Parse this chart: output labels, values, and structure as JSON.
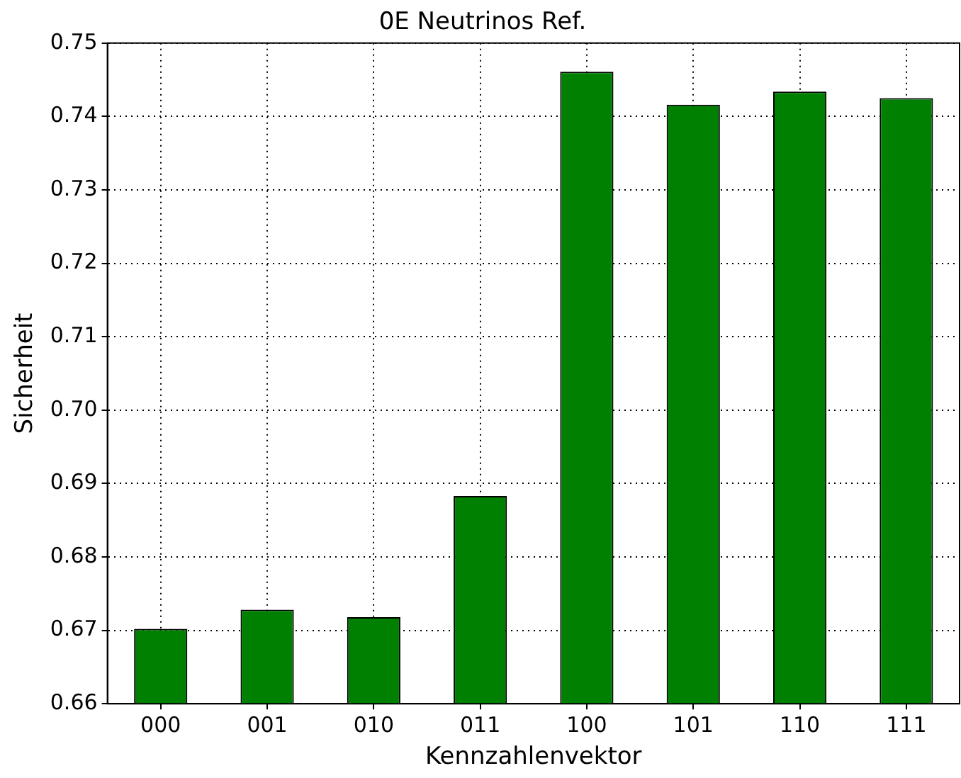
{
  "chart_data": {
    "type": "bar",
    "title": "0E Neutrinos Ref.",
    "xlabel": "Kennzahlenvektor",
    "ylabel": "Sicherheit",
    "categories": [
      "000",
      "001",
      "010",
      "011",
      "100",
      "101",
      "110",
      "111"
    ],
    "values": [
      0.6702,
      0.6728,
      0.6718,
      0.6883,
      0.7461,
      0.7416,
      0.7434,
      0.7425
    ],
    "color": "#008000",
    "ylim": [
      0.66,
      0.75
    ],
    "yticks": [
      {
        "value": 0.66,
        "label": "0.66"
      },
      {
        "value": 0.67,
        "label": "0.67"
      },
      {
        "value": 0.68,
        "label": "0.68"
      },
      {
        "value": 0.69,
        "label": "0.69"
      },
      {
        "value": 0.7,
        "label": "0.70"
      },
      {
        "value": 0.71,
        "label": "0.71"
      },
      {
        "value": 0.72,
        "label": "0.72"
      },
      {
        "value": 0.73,
        "label": "0.73"
      },
      {
        "value": 0.74,
        "label": "0.74"
      },
      {
        "value": 0.75,
        "label": "0.75"
      }
    ],
    "grid": true,
    "legend": false
  }
}
